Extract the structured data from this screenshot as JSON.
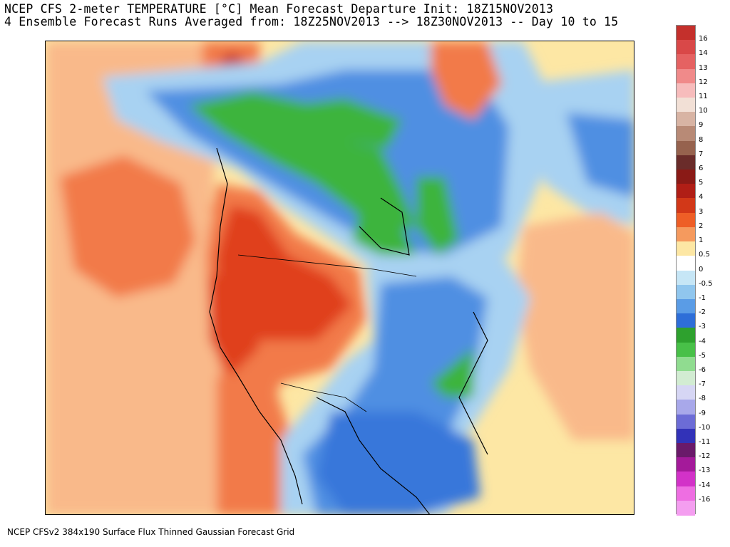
{
  "header": {
    "line1": "NCEP CFS 2-meter TEMPERATURE [°C] Mean Forecast Departure Init: 18Z15NOV2013",
    "line2": "4 Ensemble Forecast Runs Averaged from: 18Z25NOV2013 --> 18Z30NOV2013 -- Day 10 to 15"
  },
  "footer": "NCEP CFSv2 384x190 Surface Flux Thinned Gaussian Forecast Grid",
  "legend": {
    "levels": [
      {
        "label": "16",
        "color": "#c4302c"
      },
      {
        "label": "14",
        "color": "#d94848"
      },
      {
        "label": "13",
        "color": "#e56262"
      },
      {
        "label": "12",
        "color": "#f08a8a"
      },
      {
        "label": "11",
        "color": "#f7bcbc"
      },
      {
        "label": "10",
        "color": "#f2e0d6"
      },
      {
        "label": "9",
        "color": "#d8b4a4"
      },
      {
        "label": "8",
        "color": "#b88a76"
      },
      {
        "label": "7",
        "color": "#96624e"
      },
      {
        "label": "6",
        "color": "#6a2c2a"
      },
      {
        "label": "5",
        "color": "#8a1a16"
      },
      {
        "label": "4",
        "color": "#b01e16"
      },
      {
        "label": "3",
        "color": "#d23818"
      },
      {
        "label": "2",
        "color": "#ee5e26"
      },
      {
        "label": "1",
        "color": "#f59a5e"
      },
      {
        "label": "0.5",
        "color": "#fde7a4"
      },
      {
        "label": "0",
        "color": "#ffffff"
      },
      {
        "label": "-0.5",
        "color": "#c6e6f6"
      },
      {
        "label": "-1",
        "color": "#90c6ee"
      },
      {
        "label": "-2",
        "color": "#5a9ce6"
      },
      {
        "label": "-3",
        "color": "#2e6ed8"
      },
      {
        "label": "-4",
        "color": "#2ea12e"
      },
      {
        "label": "-5",
        "color": "#48c048"
      },
      {
        "label": "-6",
        "color": "#90dc90"
      },
      {
        "label": "-7",
        "color": "#d2ecd2"
      },
      {
        "label": "-8",
        "color": "#d6d6f4"
      },
      {
        "label": "-9",
        "color": "#a8a8ea"
      },
      {
        "label": "-10",
        "color": "#6c6cd6"
      },
      {
        "label": "-11",
        "color": "#3232b8"
      },
      {
        "label": "-12",
        "color": "#6a1a6a"
      },
      {
        "label": "-13",
        "color": "#a41a9a"
      },
      {
        "label": "-14",
        "color": "#d232c8"
      },
      {
        "label": "-16",
        "color": "#ee6ee2"
      },
      {
        "label": "",
        "color": "#f49ef0"
      }
    ]
  },
  "colors": {
    "warm_strong": "#e0401c",
    "warm_mid": "#f27a4a",
    "warm_light": "#f9b98a",
    "neutral_light": "#fde7a4",
    "cold_light": "#a8d2f2",
    "cold_mid": "#4f8fe2",
    "cold_strong": "#2e6ed8",
    "green_cold": "#3cb43c"
  }
}
